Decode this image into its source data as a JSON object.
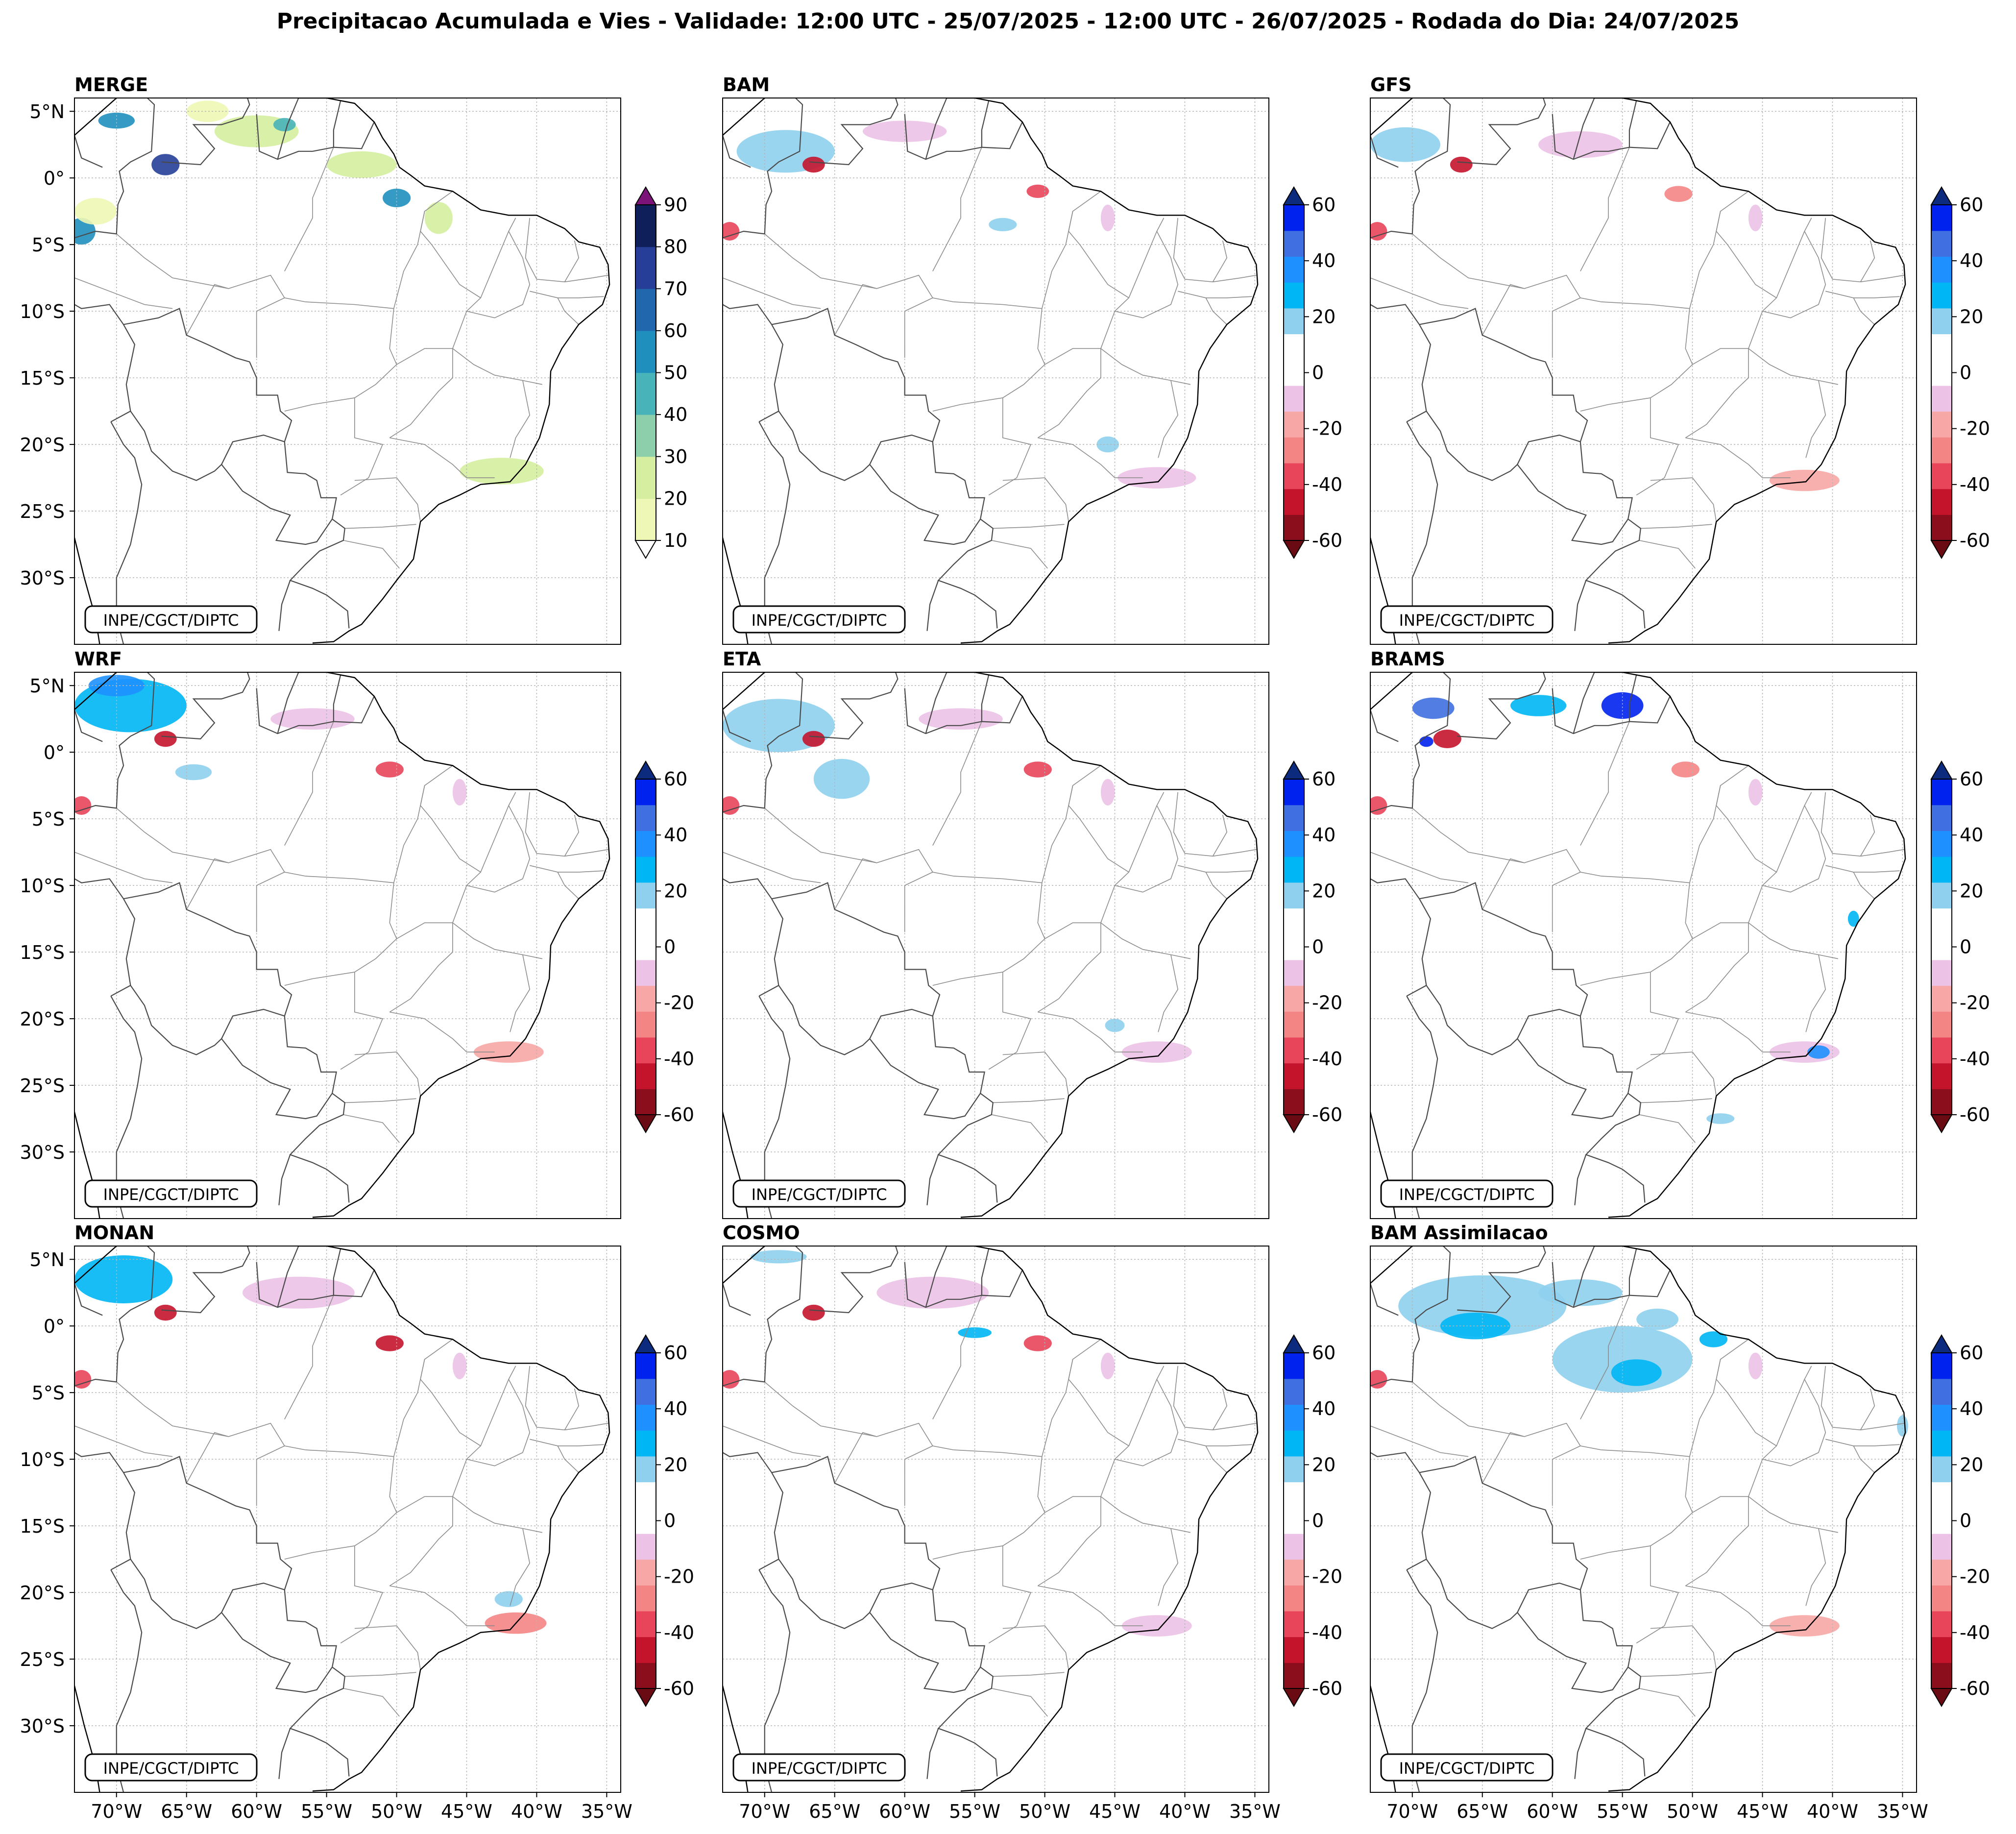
{
  "figure": {
    "title": "Precipitacao Acumulada e Vies - Validade: 12:00 UTC - 25/07/2025 - 12:00 UTC - 26/07/2025 - Rodada do Dia: 24/07/2025",
    "credit": "INPE/CGCT/DIPTC",
    "lat_ticks": [
      "5°N",
      "0°",
      "5°S",
      "10°S",
      "15°S",
      "20°S",
      "25°S",
      "30°S"
    ],
    "lon_ticks": [
      "70°W",
      "65°W",
      "60°W",
      "55°W",
      "50°W",
      "45°W",
      "40°W",
      "35°W"
    ],
    "lat_values": [
      5,
      0,
      -5,
      -10,
      -15,
      -20,
      -25,
      -30
    ],
    "lon_values": [
      -70,
      -65,
      -60,
      -55,
      -50,
      -45,
      -40,
      -35
    ],
    "map_extent": {
      "lon_min": -73,
      "lon_max": -34,
      "lat_min": -35,
      "lat_max": 6
    }
  },
  "colorbars": {
    "precip": {
      "tick_labels": [
        "90",
        "80",
        "70",
        "60",
        "50",
        "40",
        "30",
        "20",
        "10"
      ],
      "colors": [
        "#eef7b5",
        "#d5eea0",
        "#8ecfab",
        "#48b3b8",
        "#1f90be",
        "#2067ad",
        "#263e97",
        "#0e1f5a"
      ],
      "over": "#7b1378",
      "under": "#ffffff"
    },
    "bias": {
      "tick_labels": [
        "60",
        "40",
        "20",
        "0",
        "-20",
        "-40",
        "-60"
      ],
      "colors": [
        "#8b0e1d",
        "#c4142c",
        "#e8445a",
        "#f48585",
        "#f7a7a5",
        "#ecc2e6",
        "#ffffff",
        "#ffffff",
        "#8fd0ee",
        "#00b6f4",
        "#1e90ff",
        "#3f6fe0",
        "#0022ee"
      ],
      "over": "#0c2a7e",
      "under": "#6a0a12"
    }
  },
  "panels": [
    {
      "label": "MERGE",
      "colorbar": "precip",
      "blobs": [
        {
          "lon": -70.0,
          "lat": 4.3,
          "rx": 1.3,
          "ry": 0.6,
          "level": 4
        },
        {
          "lon": -66.5,
          "lat": 1.0,
          "rx": 1.0,
          "ry": 0.8,
          "level": 6
        },
        {
          "lon": -72.5,
          "lat": -4.0,
          "rx": 1.0,
          "ry": 1.0,
          "level": 4
        },
        {
          "lon": -60.0,
          "lat": 3.5,
          "rx": 3.0,
          "ry": 1.2,
          "level": 1
        },
        {
          "lon": -58.0,
          "lat": 4.0,
          "rx": 0.8,
          "ry": 0.5,
          "level": 3
        },
        {
          "lon": -52.5,
          "lat": 1.0,
          "rx": 2.5,
          "ry": 1.0,
          "level": 1
        },
        {
          "lon": -50.0,
          "lat": -1.5,
          "rx": 1.0,
          "ry": 0.7,
          "level": 4
        },
        {
          "lon": -47.0,
          "lat": -3.0,
          "rx": 1.0,
          "ry": 1.2,
          "level": 1
        },
        {
          "lon": -42.5,
          "lat": -22.0,
          "rx": 3.0,
          "ry": 1.0,
          "level": 1
        },
        {
          "lon": -71.5,
          "lat": -2.5,
          "rx": 1.5,
          "ry": 1.0,
          "level": 0
        },
        {
          "lon": -63.5,
          "lat": 5.0,
          "rx": 1.5,
          "ry": 0.8,
          "level": 0
        }
      ]
    },
    {
      "label": "BAM",
      "colorbar": "bias",
      "blobs": [
        {
          "lon": -68.5,
          "lat": 2.0,
          "rx": 3.5,
          "ry": 1.6,
          "level": 8
        },
        {
          "lon": -66.5,
          "lat": 1.0,
          "rx": 0.8,
          "ry": 0.6,
          "level": 1
        },
        {
          "lon": -72.5,
          "lat": -4.0,
          "rx": 0.7,
          "ry": 0.7,
          "level": 2
        },
        {
          "lon": -50.5,
          "lat": -1.0,
          "rx": 0.8,
          "ry": 0.5,
          "level": 2
        },
        {
          "lon": -60.0,
          "lat": 3.5,
          "rx": 3.0,
          "ry": 0.8,
          "level": 5
        },
        {
          "lon": -45.5,
          "lat": -3.0,
          "rx": 0.5,
          "ry": 1.0,
          "level": 5
        },
        {
          "lon": -42.0,
          "lat": -22.5,
          "rx": 2.8,
          "ry": 0.8,
          "level": 5
        },
        {
          "lon": -45.5,
          "lat": -20.0,
          "rx": 0.8,
          "ry": 0.6,
          "level": 8
        },
        {
          "lon": -53.0,
          "lat": -3.5,
          "rx": 1.0,
          "ry": 0.5,
          "level": 8
        }
      ]
    },
    {
      "label": "GFS",
      "colorbar": "bias",
      "blobs": [
        {
          "lon": -70.5,
          "lat": 2.5,
          "rx": 2.5,
          "ry": 1.3,
          "level": 8
        },
        {
          "lon": -66.5,
          "lat": 1.0,
          "rx": 0.8,
          "ry": 0.6,
          "level": 1
        },
        {
          "lon": -72.5,
          "lat": -4.0,
          "rx": 0.7,
          "ry": 0.7,
          "level": 2
        },
        {
          "lon": -51.0,
          "lat": -1.2,
          "rx": 1.0,
          "ry": 0.6,
          "level": 3
        },
        {
          "lon": -58.0,
          "lat": 2.5,
          "rx": 3.0,
          "ry": 1.0,
          "level": 5
        },
        {
          "lon": -45.5,
          "lat": -3.0,
          "rx": 0.5,
          "ry": 1.0,
          "level": 5
        },
        {
          "lon": -42.0,
          "lat": -22.7,
          "rx": 2.5,
          "ry": 0.8,
          "level": 4
        }
      ]
    },
    {
      "label": "WRF",
      "colorbar": "bias",
      "blobs": [
        {
          "lon": -69.0,
          "lat": 3.5,
          "rx": 4.0,
          "ry": 2.0,
          "level": 9
        },
        {
          "lon": -70.0,
          "lat": 5.0,
          "rx": 2.0,
          "ry": 0.8,
          "level": 10
        },
        {
          "lon": -66.5,
          "lat": 1.0,
          "rx": 0.8,
          "ry": 0.6,
          "level": 1
        },
        {
          "lon": -72.5,
          "lat": -4.0,
          "rx": 0.7,
          "ry": 0.7,
          "level": 2
        },
        {
          "lon": -50.5,
          "lat": -1.3,
          "rx": 1.0,
          "ry": 0.6,
          "level": 2
        },
        {
          "lon": -64.5,
          "lat": -1.5,
          "rx": 1.3,
          "ry": 0.6,
          "level": 8
        },
        {
          "lon": -56.0,
          "lat": 2.5,
          "rx": 3.0,
          "ry": 0.8,
          "level": 5
        },
        {
          "lon": -45.5,
          "lat": -3.0,
          "rx": 0.5,
          "ry": 1.0,
          "level": 5
        },
        {
          "lon": -42.0,
          "lat": -22.5,
          "rx": 2.5,
          "ry": 0.8,
          "level": 4
        }
      ]
    },
    {
      "label": "ETA",
      "colorbar": "bias",
      "blobs": [
        {
          "lon": -69.0,
          "lat": 2.0,
          "rx": 4.0,
          "ry": 2.0,
          "level": 8
        },
        {
          "lon": -64.5,
          "lat": -2.0,
          "rx": 2.0,
          "ry": 1.5,
          "level": 8
        },
        {
          "lon": -66.5,
          "lat": 1.0,
          "rx": 0.8,
          "ry": 0.6,
          "level": 1
        },
        {
          "lon": -72.5,
          "lat": -4.0,
          "rx": 0.7,
          "ry": 0.7,
          "level": 2
        },
        {
          "lon": -50.5,
          "lat": -1.3,
          "rx": 1.0,
          "ry": 0.6,
          "level": 2
        },
        {
          "lon": -56.0,
          "lat": 2.5,
          "rx": 3.0,
          "ry": 0.8,
          "level": 5
        },
        {
          "lon": -45.5,
          "lat": -3.0,
          "rx": 0.5,
          "ry": 1.0,
          "level": 5
        },
        {
          "lon": -42.0,
          "lat": -22.5,
          "rx": 2.5,
          "ry": 0.8,
          "level": 5
        },
        {
          "lon": -45.0,
          "lat": -20.5,
          "rx": 0.7,
          "ry": 0.5,
          "level": 8
        }
      ]
    },
    {
      "label": "BRAMS",
      "colorbar": "bias",
      "blobs": [
        {
          "lon": -67.5,
          "lat": 1.0,
          "rx": 1.0,
          "ry": 0.7,
          "level": 1
        },
        {
          "lon": -69.0,
          "lat": 0.8,
          "rx": 0.5,
          "ry": 0.4,
          "level": 12
        },
        {
          "lon": -68.5,
          "lat": 3.3,
          "rx": 1.5,
          "ry": 0.8,
          "level": 11
        },
        {
          "lon": -55.0,
          "lat": 3.5,
          "rx": 1.5,
          "ry": 1.0,
          "level": 12
        },
        {
          "lon": -61.0,
          "lat": 3.5,
          "rx": 2.0,
          "ry": 0.8,
          "level": 9
        },
        {
          "lon": -72.5,
          "lat": -4.0,
          "rx": 0.7,
          "ry": 0.7,
          "level": 2
        },
        {
          "lon": -50.5,
          "lat": -1.3,
          "rx": 1.0,
          "ry": 0.6,
          "level": 3
        },
        {
          "lon": -45.5,
          "lat": -3.0,
          "rx": 0.5,
          "ry": 1.0,
          "level": 5
        },
        {
          "lon": -42.0,
          "lat": -22.5,
          "rx": 2.5,
          "ry": 0.8,
          "level": 5
        },
        {
          "lon": -41.0,
          "lat": -22.5,
          "rx": 0.8,
          "ry": 0.5,
          "level": 10
        },
        {
          "lon": -48.0,
          "lat": -27.5,
          "rx": 1.0,
          "ry": 0.4,
          "level": 8
        },
        {
          "lon": -38.5,
          "lat": -12.5,
          "rx": 0.4,
          "ry": 0.6,
          "level": 9
        }
      ]
    },
    {
      "label": "MONAN",
      "colorbar": "bias",
      "blobs": [
        {
          "lon": -69.5,
          "lat": 3.5,
          "rx": 3.5,
          "ry": 1.8,
          "level": 9
        },
        {
          "lon": -66.5,
          "lat": 1.0,
          "rx": 0.8,
          "ry": 0.6,
          "level": 1
        },
        {
          "lon": -72.5,
          "lat": -4.0,
          "rx": 0.7,
          "ry": 0.7,
          "level": 2
        },
        {
          "lon": -50.5,
          "lat": -1.3,
          "rx": 1.0,
          "ry": 0.6,
          "level": 1
        },
        {
          "lon": -57.0,
          "lat": 2.5,
          "rx": 4.0,
          "ry": 1.2,
          "level": 5
        },
        {
          "lon": -45.5,
          "lat": -3.0,
          "rx": 0.5,
          "ry": 1.0,
          "level": 5
        },
        {
          "lon": -41.5,
          "lat": -22.3,
          "rx": 2.2,
          "ry": 0.8,
          "level": 3
        },
        {
          "lon": -42.0,
          "lat": -20.5,
          "rx": 1.0,
          "ry": 0.6,
          "level": 8
        }
      ]
    },
    {
      "label": "COSMO",
      "colorbar": "bias",
      "blobs": [
        {
          "lon": -66.5,
          "lat": 1.0,
          "rx": 0.8,
          "ry": 0.6,
          "level": 1
        },
        {
          "lon": -72.5,
          "lat": -4.0,
          "rx": 0.7,
          "ry": 0.7,
          "level": 2
        },
        {
          "lon": -50.5,
          "lat": -1.3,
          "rx": 1.0,
          "ry": 0.6,
          "level": 2
        },
        {
          "lon": -58.0,
          "lat": 2.5,
          "rx": 4.0,
          "ry": 1.2,
          "level": 5
        },
        {
          "lon": -45.5,
          "lat": -3.0,
          "rx": 0.5,
          "ry": 1.0,
          "level": 5
        },
        {
          "lon": -42.0,
          "lat": -22.5,
          "rx": 2.5,
          "ry": 0.8,
          "level": 5
        },
        {
          "lon": -55.0,
          "lat": -0.5,
          "rx": 1.2,
          "ry": 0.4,
          "level": 9
        },
        {
          "lon": -69.0,
          "lat": 5.2,
          "rx": 2.0,
          "ry": 0.5,
          "level": 8
        }
      ]
    },
    {
      "label": "BAM Assimilacao",
      "colorbar": "bias",
      "blobs": [
        {
          "lon": -65.0,
          "lat": 1.5,
          "rx": 6.0,
          "ry": 2.3,
          "level": 8
        },
        {
          "lon": -65.5,
          "lat": 0.0,
          "rx": 2.5,
          "ry": 1.0,
          "level": 9
        },
        {
          "lon": -55.0,
          "lat": -2.5,
          "rx": 5.0,
          "ry": 2.5,
          "level": 8
        },
        {
          "lon": -54.0,
          "lat": -3.5,
          "rx": 1.8,
          "ry": 1.0,
          "level": 9
        },
        {
          "lon": -58.0,
          "lat": 2.5,
          "rx": 3.0,
          "ry": 1.0,
          "level": 8
        },
        {
          "lon": -52.5,
          "lat": 0.5,
          "rx": 1.5,
          "ry": 0.8,
          "level": 8
        },
        {
          "lon": -48.5,
          "lat": -1.0,
          "rx": 1.0,
          "ry": 0.6,
          "level": 9
        },
        {
          "lon": -72.5,
          "lat": -4.0,
          "rx": 0.7,
          "ry": 0.7,
          "level": 2
        },
        {
          "lon": -45.5,
          "lat": -3.0,
          "rx": 0.5,
          "ry": 1.0,
          "level": 5
        },
        {
          "lon": -42.0,
          "lat": -22.5,
          "rx": 2.5,
          "ry": 0.8,
          "level": 4
        },
        {
          "lon": -35.0,
          "lat": -7.5,
          "rx": 0.4,
          "ry": 0.8,
          "level": 8
        }
      ]
    }
  ]
}
